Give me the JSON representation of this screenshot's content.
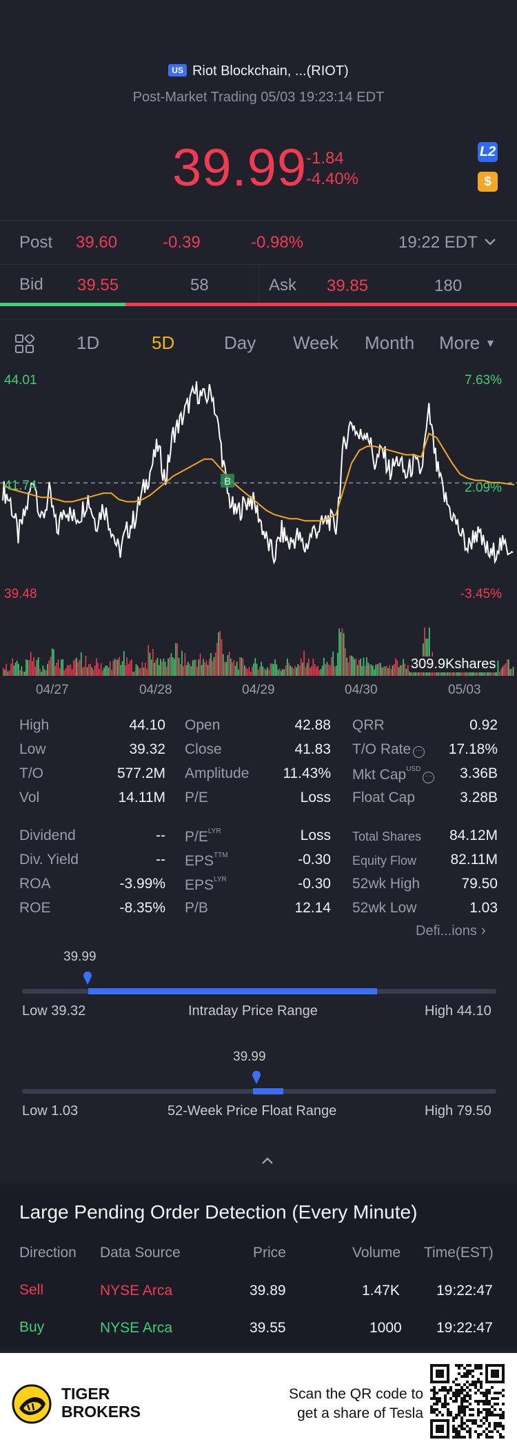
{
  "header": {
    "market_badge": "US",
    "title": "Riot Blockchain, ...(RIOT)",
    "subtitle": "Post-Market Trading 05/03 19:23:14 EDT",
    "price": "39.99",
    "change": "-1.84",
    "change_pct": "-4.40%",
    "l2_badge": "L2",
    "dollar_badge": "$"
  },
  "post_row": {
    "label": "Post",
    "price": "39.60",
    "change": "-0.39",
    "change_pct": "-0.98%",
    "time": "19:22 EDT"
  },
  "bid_ask": {
    "bid_label": "Bid",
    "bid_price": "39.55",
    "bid_size": "58",
    "ask_label": "Ask",
    "ask_price": "39.85",
    "ask_size": "180"
  },
  "tabs": [
    "1D",
    "5D",
    "Day",
    "Week",
    "Month",
    "More"
  ],
  "active_tab": "5D",
  "chart_data": {
    "type": "line",
    "y_left_labels": [
      "44.01",
      "41.74",
      "39.48"
    ],
    "y_right_labels": [
      "7.63%",
      "2.09%",
      "-3.45%"
    ],
    "ylim": [
      39.48,
      44.01
    ],
    "prev_close": 41.74,
    "x_labels": [
      "04/27",
      "04/28",
      "04/29",
      "04/30",
      "05/03"
    ],
    "volume_label": "309.9Kshares",
    "marker_label": "B",
    "series": [
      {
        "name": "price",
        "values": [
          41.6,
          41.3,
          40.5,
          41.1,
          41.9,
          40.8,
          41.5,
          40.6,
          41.2,
          40.9,
          41.0,
          41.4,
          40.8,
          41.2,
          40.7,
          40.1,
          40.6,
          40.9,
          41.5,
          42.0,
          42.6,
          41.8,
          42.9,
          43.2,
          43.6,
          43.9,
          43.7,
          43.9,
          42.8,
          41.5,
          41.0,
          41.2,
          41.4,
          41.0,
          40.4,
          40.0,
          40.6,
          40.3,
          40.5,
          40.2,
          40.6,
          40.7,
          40.9,
          40.7,
          42.6,
          43.2,
          42.8,
          43.0,
          42.2,
          42.5,
          42.0,
          42.3,
          41.9,
          42.2,
          42.0,
          43.4,
          42.1,
          41.4,
          41.0,
          40.6,
          40.2,
          40.6,
          40.3,
          40.0,
          40.3,
          40.2,
          40.3
        ]
      },
      {
        "name": "avg",
        "values": [
          41.7,
          41.6,
          41.55,
          41.5,
          41.45,
          41.4,
          41.4,
          41.35,
          41.3,
          41.3,
          41.35,
          41.4,
          41.45,
          41.5,
          41.5,
          41.35,
          41.3,
          41.3,
          41.35,
          41.45,
          41.6,
          41.75,
          41.9,
          42.0,
          42.1,
          42.2,
          42.3,
          42.3,
          42.1,
          41.9,
          41.7,
          41.55,
          41.4,
          41.25,
          41.1,
          41.0,
          40.95,
          40.9,
          40.9,
          40.85,
          40.85,
          40.85,
          40.9,
          41.0,
          41.6,
          42.2,
          42.5,
          42.6,
          42.6,
          42.55,
          42.5,
          42.45,
          42.4,
          42.4,
          42.35,
          42.9,
          42.8,
          42.5,
          42.2,
          41.95,
          41.85,
          41.8,
          41.8,
          41.75,
          41.75,
          41.72,
          41.7
        ]
      }
    ],
    "volume": [
      2,
      3,
      2,
      4,
      3,
      2,
      5,
      3,
      2,
      3,
      4,
      2,
      3,
      2,
      3,
      4,
      3,
      2,
      3,
      5,
      4,
      3,
      6,
      4,
      3,
      4,
      3,
      5,
      9,
      4,
      3,
      3,
      2,
      3,
      2,
      3,
      2,
      3,
      2,
      4,
      3,
      2,
      3,
      4,
      8,
      4,
      3,
      3,
      2,
      3,
      2,
      3,
      3,
      2,
      3,
      10,
      4,
      3,
      3,
      2,
      3,
      2,
      3,
      2,
      3,
      2,
      3
    ]
  },
  "stats": {
    "col1": [
      {
        "label": "High",
        "value": "44.10"
      },
      {
        "label": "Low",
        "value": "39.32"
      },
      {
        "label": "T/O",
        "value": "577.2M"
      },
      {
        "label": "Vol",
        "value": "14.11M"
      }
    ],
    "col2": [
      {
        "label": "Open",
        "value": "42.88"
      },
      {
        "label": "Close",
        "value": "41.83"
      },
      {
        "label": "Amplitude",
        "value": "11.43%"
      },
      {
        "label": "P/E",
        "value": "Loss"
      }
    ],
    "col3": [
      {
        "label": "QRR",
        "value": "0.92"
      },
      {
        "label": "T/O Rate",
        "value": "17.18%"
      },
      {
        "label": "Mkt Cap",
        "value": "3.36B",
        "sup": "USD"
      },
      {
        "label": "Float Cap",
        "value": "3.28B"
      }
    ],
    "col1b": [
      {
        "label": "Dividend",
        "value": "--"
      },
      {
        "label": "Div. Yield",
        "value": "--"
      },
      {
        "label": "ROA",
        "value": "-3.99%"
      },
      {
        "label": "ROE",
        "value": "-8.35%"
      }
    ],
    "col2b": [
      {
        "label": "P/E",
        "sup": "LYR",
        "value": "Loss"
      },
      {
        "label": "EPS",
        "sup": "TTM",
        "value": "-0.30"
      },
      {
        "label": "EPS",
        "sup": "LYR",
        "value": "-0.30"
      },
      {
        "label": "P/B",
        "value": "12.14"
      }
    ],
    "col3b": [
      {
        "label": "Total Shares",
        "value": "84.12M"
      },
      {
        "label": "Equity Flow",
        "value": "82.11M"
      },
      {
        "label": "52wk High",
        "value": "79.50"
      },
      {
        "label": "52wk Low",
        "value": "1.03"
      }
    ],
    "definitions_link": "Defi...ions"
  },
  "intraday_range": {
    "current": "39.99",
    "low_label": "Low 39.32",
    "title": "Intraday Price Range",
    "high_label": "High 44.10",
    "fill_start": 0.14,
    "fill_end": 0.749
  },
  "week52_range": {
    "current": "39.99",
    "low_label": "Low 1.03",
    "title": "52-Week Price Float Range",
    "high_label": "High 79.50",
    "marker_pos": 0.49
  },
  "pending_orders": {
    "title": "Large Pending Order Detection (Every Minute)",
    "headers": [
      "Direction",
      "Data Source",
      "Price",
      "Volume",
      "Time(EST)"
    ],
    "rows": [
      {
        "direction": "Sell",
        "source": "NYSE Arca",
        "price": "39.89",
        "volume": "1.47K",
        "time": "19:22:47"
      },
      {
        "direction": "Buy",
        "source": "NYSE Arca",
        "price": "39.55",
        "volume": "1000",
        "time": "19:22:47"
      }
    ]
  },
  "footer": {
    "brand_line1": "TIGER",
    "brand_line2": "BROKERS",
    "cta_line1": "Scan the QR code to",
    "cta_line2": "get a share of Tesla"
  }
}
